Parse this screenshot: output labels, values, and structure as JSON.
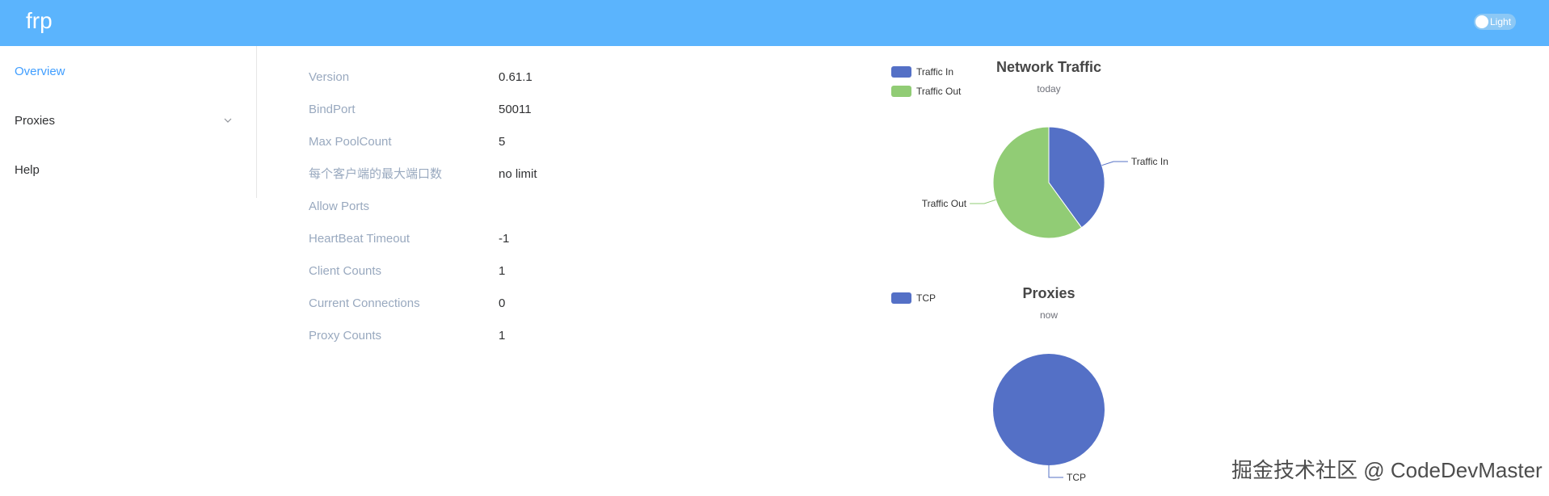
{
  "header": {
    "brand": "frp",
    "theme_toggle_label": "Light"
  },
  "sidebar": {
    "items": [
      {
        "label": "Overview",
        "active": true
      },
      {
        "label": "Proxies",
        "has_submenu": true
      },
      {
        "label": "Help"
      }
    ]
  },
  "server_info": [
    {
      "key": "Version",
      "value": "0.61.1"
    },
    {
      "key": "BindPort",
      "value": "50011"
    },
    {
      "key": "Max PoolCount",
      "value": "5"
    },
    {
      "key": "每个客户端的最大端口数",
      "value": "no limit"
    },
    {
      "key": "Allow Ports",
      "value": ""
    },
    {
      "key": "HeartBeat Timeout",
      "value": "-1"
    },
    {
      "key": "Client Counts",
      "value": "1"
    },
    {
      "key": "Current Connections",
      "value": "0"
    },
    {
      "key": "Proxy Counts",
      "value": "1"
    }
  ],
  "chart_data": [
    {
      "type": "pie",
      "title": "Network Traffic",
      "subtitle": "today",
      "legend_placement": "top-left",
      "categories": [
        "Traffic In",
        "Traffic Out"
      ],
      "values": [
        40,
        60
      ],
      "colors": [
        "#5470c6",
        "#91cc75"
      ]
    },
    {
      "type": "pie",
      "title": "Proxies",
      "subtitle": "now",
      "legend_placement": "top-left",
      "categories": [
        "TCP"
      ],
      "values": [
        1
      ],
      "colors": [
        "#5470c6"
      ]
    }
  ],
  "watermark": "掘金技术社区 @ CodeDevMaster"
}
